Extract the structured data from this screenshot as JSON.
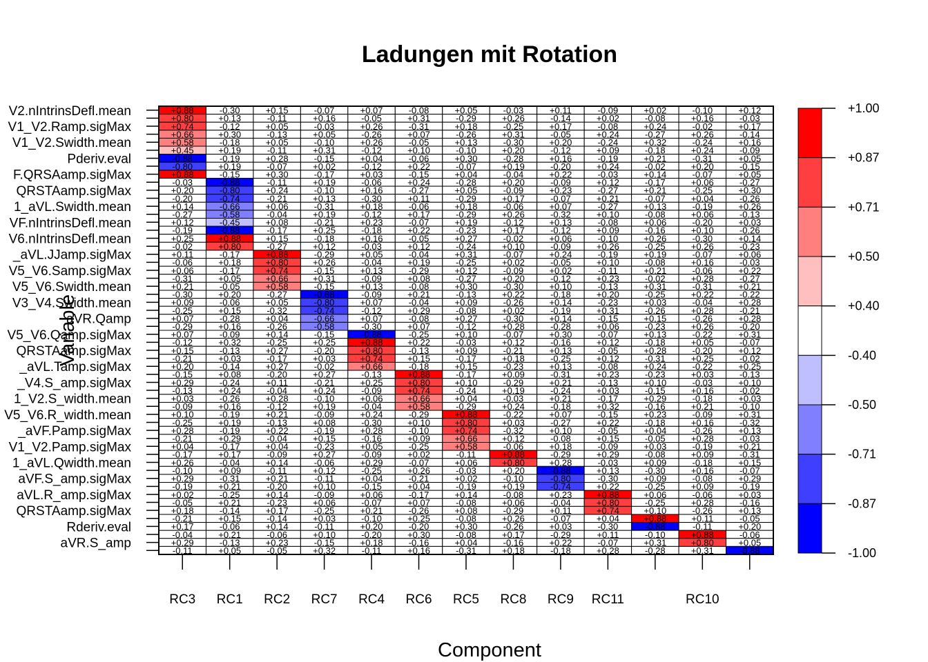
{
  "chart_data": {
    "type": "heatmap",
    "title": "Ladungen mit Rotation",
    "xlabel": "Component",
    "ylabel": "Variable",
    "x_tick_labels": [
      "RC3",
      "RC1",
      "RC2",
      "RC7",
      "RC4",
      "RC6",
      "RC5",
      "RC8",
      "RC9",
      "RC11",
      "",
      "RC10",
      ""
    ],
    "y_tick_labels": [
      "V2.nIntrinsDefl.mean",
      "V1_V2.Ramp.sigMax",
      "V1_V2.Swidth.mean",
      "Pderiv.eval",
      "F.QRSAamp.sigMax",
      "QRSTAamp.sigMax",
      "1_aVL.Swidth.mean",
      "VF.nIntrinsDefl.mean",
      "V6.nIntrinsDefl.mean",
      "_aVL.JJamp.sigMax",
      "V5_V6.Samp.sigMax",
      "V5_V6.Swidth.mean",
      "V3_V4.Swidth.mean",
      "aVR.Qamp",
      "V5_V6.Qamp.sigMax",
      "QRSTAamp.sigMax",
      "_aVL.Tamp.sigMax",
      "_V4.S_amp.sigMax",
      "1_V2.S_width.mean",
      "V5_V6.R_width.mean",
      "_aVF.Pamp.sigMax",
      "V1_V2.Pamp.sigMax",
      "1_aVL.Qwidth.mean",
      "aVF.S_amp.sigMax",
      "aVL.R_amp.sigMax",
      "QRSTAamp.sigMax",
      "Rderiv.eval",
      "aVR.S_amp"
    ],
    "colorbar_breaks": [
      "+1.00",
      "+0.87",
      "+0.71",
      "+0.50",
      "+0.40",
      "-0.40",
      "-0.50",
      "-0.71",
      "-0.87",
      "-1.00"
    ],
    "colorbar_colors": [
      "#FF0000",
      "#FF3F3F",
      "#FF7F7F",
      "#FFBFBF",
      "#FFFFFF",
      "#BFBFFF",
      "#7F7FFF",
      "#3F3FFF",
      "#0000FF"
    ],
    "n_rows": 56,
    "n_cols": 13,
    "blocks": [
      {
        "col": 0,
        "rows": [
          0,
          5
        ],
        "sign": 1
      },
      {
        "col": 0,
        "rows": [
          6,
          7
        ],
        "sign": -1
      },
      {
        "col": 0,
        "rows": [
          8,
          8
        ],
        "sign": 1
      },
      {
        "col": 1,
        "rows": [
          9,
          15
        ],
        "sign": -1
      },
      {
        "col": 1,
        "rows": [
          16,
          17
        ],
        "sign": 1
      },
      {
        "col": 2,
        "rows": [
          18,
          22
        ],
        "sign": 1
      },
      {
        "col": 3,
        "rows": [
          23,
          27
        ],
        "sign": -1
      },
      {
        "col": 4,
        "rows": [
          28,
          28
        ],
        "sign": -1
      },
      {
        "col": 4,
        "rows": [
          29,
          32
        ],
        "sign": 1
      },
      {
        "col": 5,
        "rows": [
          33,
          37
        ],
        "sign": 1
      },
      {
        "col": 6,
        "rows": [
          38,
          42
        ],
        "sign": 1
      },
      {
        "col": 7,
        "rows": [
          43,
          44
        ],
        "sign": 1
      },
      {
        "col": 8,
        "rows": [
          45,
          47
        ],
        "sign": -1
      },
      {
        "col": 9,
        "rows": [
          48,
          50
        ],
        "sign": 1
      },
      {
        "col": 10,
        "rows": [
          51,
          51
        ],
        "sign": 1
      },
      {
        "col": 10,
        "rows": [
          52,
          52
        ],
        "sign": -1
      },
      {
        "col": 11,
        "rows": [
          53,
          54
        ],
        "sign": 1
      },
      {
        "col": 12,
        "rows": [
          55,
          55
        ],
        "sign": -1
      }
    ],
    "grid": true,
    "legend_position": "right"
  }
}
